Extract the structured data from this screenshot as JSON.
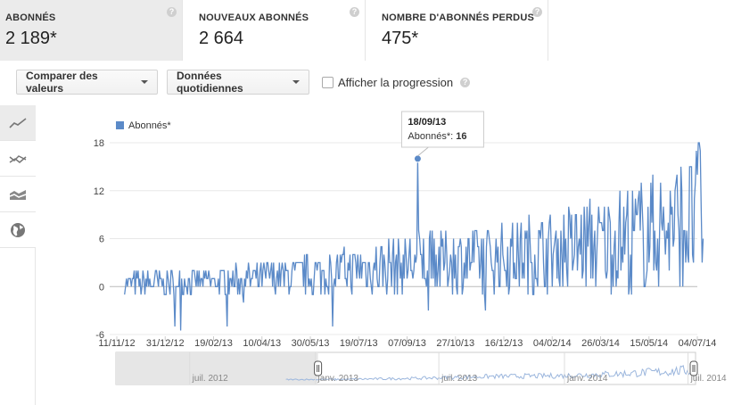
{
  "metrics": [
    {
      "label": "ABONNÉS",
      "value": "2 189*",
      "active": true
    },
    {
      "label": "NOUVEAUX ABONNÉS",
      "value": "2 664",
      "active": false
    },
    {
      "label": "NOMBRE D'ABONNÉS PERDUS",
      "value": "475*",
      "active": false
    }
  ],
  "help_glyph": "?",
  "toolbar": {
    "compare_label": "Comparer des valeurs",
    "daily_label": "Données quotidiennes",
    "progress_label": "Afficher la progression"
  },
  "sidebar": {
    "icons": [
      "line-chart-icon",
      "multi-line-chart-icon",
      "stacked-area-chart-icon",
      "globe-map-icon"
    ],
    "active": "line-chart-icon"
  },
  "colors": {
    "series": "#5b8ac8",
    "accent_bg": "#ebebeb",
    "grid": "#e8e8e8"
  },
  "chart_data": {
    "type": "line",
    "series": [
      {
        "name": "Abonnés*",
        "color": "#5b8ac8"
      }
    ],
    "ylim": [
      -6,
      18
    ],
    "yticks": [
      "-6",
      "0",
      "6",
      "12",
      "18"
    ],
    "xticks": [
      "11/11/12",
      "31/12/12",
      "19/02/13",
      "10/04/13",
      "30/05/13",
      "19/07/13",
      "07/09/13",
      "27/10/13",
      "16/12/13",
      "04/02/14",
      "26/03/14",
      "15/05/14",
      "04/07/14"
    ],
    "tooltip": {
      "date": "18/09/13",
      "label": "Abonnés*:",
      "value": "16"
    },
    "peak": {
      "date": "18/09/13",
      "value": 16
    },
    "trend_anchors": [
      {
        "date": "2012-11-11",
        "mean": 0.3
      },
      {
        "date": "2013-02-19",
        "mean": 0.6
      },
      {
        "date": "2013-05-30",
        "mean": 1.5
      },
      {
        "date": "2013-09-07",
        "mean": 3.0
      },
      {
        "date": "2013-12-16",
        "mean": 3.6
      },
      {
        "date": "2014-03-26",
        "mean": 5.4
      },
      {
        "date": "2014-07-10",
        "mean": 8.5
      }
    ],
    "navigator_labels": [
      "juil. 2012",
      "janv. 2013",
      "juil. 2013",
      "janv. 2014",
      "juil. 2014"
    ]
  }
}
